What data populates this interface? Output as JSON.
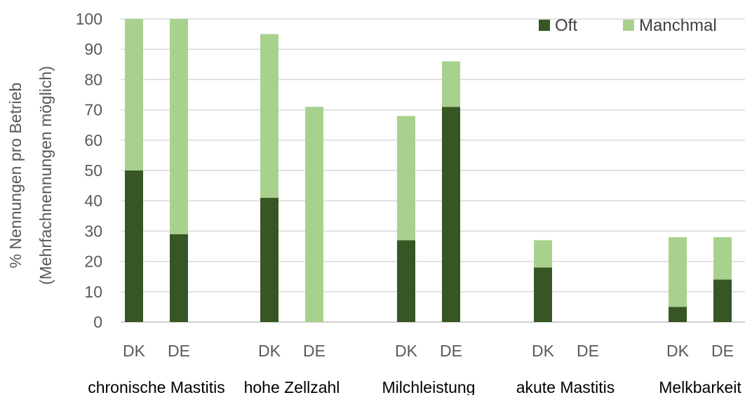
{
  "chart_data": {
    "type": "bar",
    "stacked": true,
    "ylabel_line1": "% Nennungen pro Betrieb",
    "ylabel_line2": "(Mehrfachnennungen möglich)",
    "ylim": [
      0,
      100
    ],
    "yticks": [
      0,
      10,
      20,
      30,
      40,
      50,
      60,
      70,
      80,
      90,
      100
    ],
    "grid": true,
    "legend_position": "top-right",
    "groups": [
      {
        "label": "chronische Mastitis",
        "bars": [
          {
            "label": "DK",
            "oft": 50,
            "manchmal": 50
          },
          {
            "label": "DE",
            "oft": 29,
            "manchmal": 71
          }
        ]
      },
      {
        "label": "hohe Zellzahl",
        "bars": [
          {
            "label": "DK",
            "oft": 41,
            "manchmal": 54
          },
          {
            "label": "DE",
            "oft": 0,
            "manchmal": 71
          }
        ]
      },
      {
        "label": "Milchleistung",
        "bars": [
          {
            "label": "DK",
            "oft": 27,
            "manchmal": 41
          },
          {
            "label": "DE",
            "oft": 71,
            "manchmal": 15
          }
        ]
      },
      {
        "label": "akute Mastitis",
        "bars": [
          {
            "label": "DK",
            "oft": 18,
            "manchmal": 9
          },
          {
            "label": "DE",
            "oft": 0,
            "manchmal": 0
          }
        ]
      },
      {
        "label": "Melkbarkeit",
        "bars": [
          {
            "label": "DK",
            "oft": 5,
            "manchmal": 23
          },
          {
            "label": "DE",
            "oft": 14,
            "manchmal": 14
          }
        ]
      }
    ],
    "series": [
      {
        "name": "Oft",
        "key": "oft",
        "color": "#375623"
      },
      {
        "name": "Manchmal",
        "key": "manchmal",
        "color": "#a9d18e"
      }
    ]
  }
}
